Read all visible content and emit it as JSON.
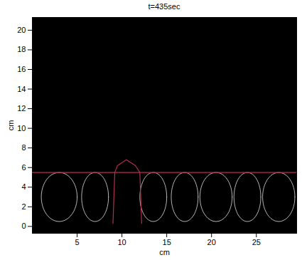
{
  "chart_data": {
    "type": "image",
    "title": "t=435sec",
    "xlabel": "cm",
    "ylabel": "cm",
    "xlim": [
      0,
      29.5
    ],
    "ylim": [
      -0.7,
      21.3
    ],
    "xticks": [
      5,
      10,
      15,
      20,
      25
    ],
    "yticks": [
      0,
      2,
      4,
      6,
      8,
      10,
      12,
      14,
      16,
      18,
      20
    ],
    "interface": {
      "x": [
        0,
        29.5
      ],
      "y": [
        5.5,
        5.5
      ],
      "color": "#b03050"
    },
    "plume_outline": {
      "x": [
        9,
        9.2,
        9.5,
        10.5,
        11.5,
        12,
        12.2
      ],
      "y": [
        0.3,
        5.5,
        6.2,
        6.8,
        6.2,
        5.5,
        0.3
      ],
      "color": "#b03050"
    },
    "cells": {
      "x": [
        3,
        7,
        13.5,
        17,
        20.5,
        24,
        27.5
      ],
      "y": [
        3,
        3,
        3,
        3,
        3,
        3,
        3
      ],
      "rx": [
        2,
        1.5,
        1.5,
        1.5,
        1.8,
        1.5,
        1.8
      ],
      "ry": [
        2.5,
        2.5,
        2.5,
        2.5,
        2.5,
        2.5,
        2.5
      ],
      "color": "#ffffff"
    }
  }
}
